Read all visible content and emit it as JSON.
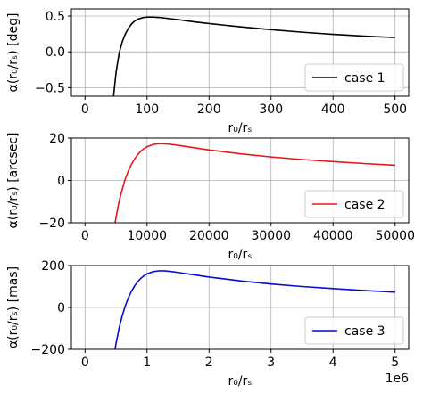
{
  "chart_data": [
    {
      "type": "line",
      "xlabel": "r₀/rₛ",
      "ylabel": "α(r₀/rₛ) [deg]",
      "xlim": [
        -22,
        522
      ],
      "ylim": [
        -0.62,
        0.6
      ],
      "xticks": [
        0,
        100,
        200,
        300,
        400,
        500
      ],
      "xtick_labels": [
        "0",
        "100",
        "200",
        "300",
        "400",
        "500"
      ],
      "yticks": [
        -0.5,
        0.0,
        0.5
      ],
      "ytick_labels": [
        "−0.5",
        "0.0",
        "0.5"
      ],
      "grid": true,
      "legend_position": "lower-right",
      "x_offset_label": "",
      "series": [
        {
          "name": "case 1",
          "color": "#000000",
          "x": [
            46,
            50,
            55,
            60,
            65,
            70,
            75,
            80,
            85,
            90,
            95,
            100,
            110,
            120,
            130,
            140,
            150,
            175,
            200,
            250,
            300,
            350,
            400,
            450,
            500
          ],
          "y": [
            -0.62,
            -0.29,
            -0.02,
            0.14,
            0.25,
            0.33,
            0.39,
            0.43,
            0.455,
            0.47,
            0.48,
            0.485,
            0.485,
            0.48,
            0.47,
            0.46,
            0.45,
            0.42,
            0.395,
            0.35,
            0.31,
            0.275,
            0.245,
            0.22,
            0.2
          ]
        }
      ]
    },
    {
      "type": "line",
      "xlabel": "r₀/rₛ",
      "ylabel": "α(r₀/rₛ) [arcsec]",
      "xlim": [
        -2200,
        52200
      ],
      "ylim": [
        -20,
        20
      ],
      "xticks": [
        0,
        10000,
        20000,
        30000,
        40000,
        50000
      ],
      "xtick_labels": [
        "0",
        "10000",
        "20000",
        "30000",
        "40000",
        "50000"
      ],
      "yticks": [
        -20,
        0,
        20
      ],
      "ytick_labels": [
        "−20",
        "0",
        "20"
      ],
      "grid": true,
      "legend_position": "lower-right",
      "x_offset_label": "",
      "series": [
        {
          "name": "case 2",
          "color": "#e8141c",
          "x": [
            4850,
            5000,
            5500,
            6000,
            6500,
            7000,
            7500,
            8000,
            8500,
            9000,
            9500,
            10000,
            11000,
            12000,
            13000,
            14000,
            15000,
            17500,
            20000,
            25000,
            30000,
            35000,
            40000,
            45000,
            50000
          ],
          "y": [
            -20,
            -17.4,
            -9.8,
            -4.2,
            0.8,
            4.6,
            7.7,
            10.2,
            12.2,
            13.8,
            15.0,
            15.9,
            17.0,
            17.4,
            17.3,
            17.0,
            16.6,
            15.5,
            14.4,
            12.6,
            11.1,
            9.9,
            8.9,
            8.0,
            7.2
          ]
        }
      ]
    },
    {
      "type": "line",
      "xlabel": "r₀/rₛ",
      "ylabel": "α(r₀/rₛ) [mas]",
      "xlim": [
        -0.22,
        5.22
      ],
      "ylim": [
        -200,
        200
      ],
      "xticks": [
        0,
        1,
        2,
        3,
        4,
        5
      ],
      "xtick_labels": [
        "0",
        "1",
        "2",
        "3",
        "4",
        "5"
      ],
      "yticks": [
        -200,
        0,
        200
      ],
      "ytick_labels": [
        "−200",
        "0",
        "200"
      ],
      "grid": true,
      "legend_position": "lower-right",
      "x_offset_label": "1e6",
      "series": [
        {
          "name": "case 3",
          "color": "#0a0ad0",
          "x": [
            0.485,
            0.5,
            0.55,
            0.6,
            0.65,
            0.7,
            0.75,
            0.8,
            0.85,
            0.9,
            0.95,
            1.0,
            1.1,
            1.2,
            1.3,
            1.4,
            1.5,
            1.75,
            2.0,
            2.5,
            3.0,
            3.5,
            4.0,
            4.5,
            5.0
          ],
          "y": [
            -200,
            -172,
            -98,
            -40,
            8,
            47,
            78,
            103,
            123,
            139,
            151,
            160,
            171,
            175,
            174,
            171,
            167,
            156,
            145,
            127,
            112,
            100,
            90,
            81,
            73
          ]
        }
      ]
    }
  ]
}
